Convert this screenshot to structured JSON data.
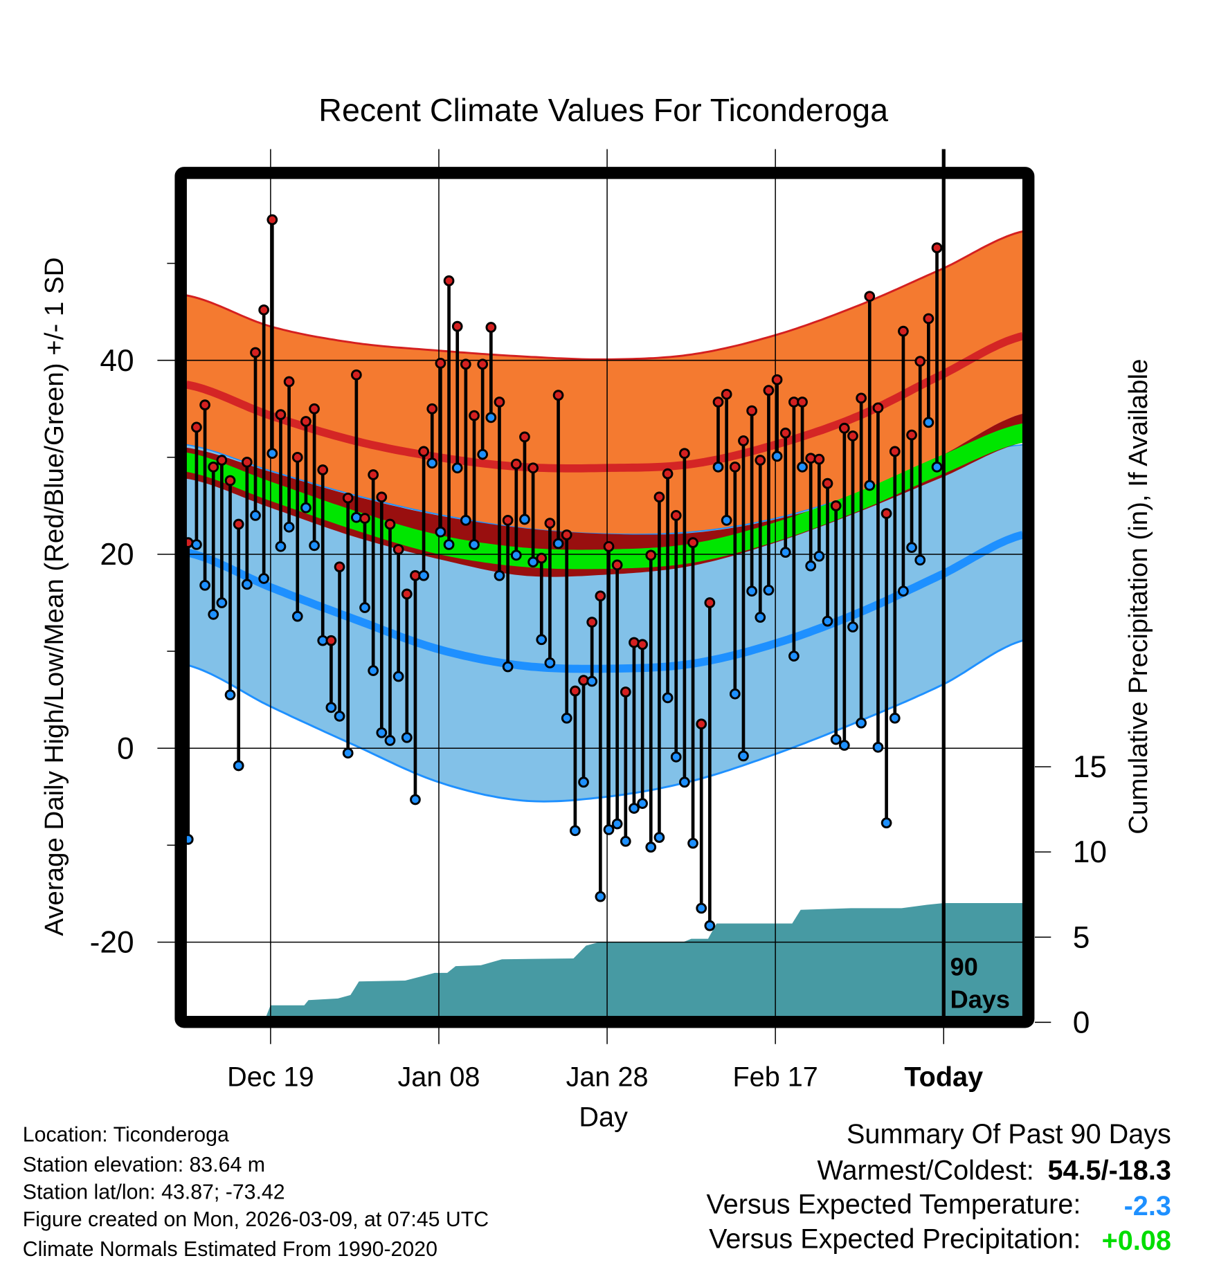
{
  "chart_data": {
    "type": "line",
    "title": "Recent Climate Values For Ticonderoga",
    "xlabel": "Day",
    "ylabel": "Average Daily High/Low/Mean (Red/Blue/Green) +/- 1 SD",
    "y2label": "Cumulative Precipitation (in), If Available",
    "ylim": [
      -27.6,
      58.7
    ],
    "y2lim": [
      0,
      15
    ],
    "xlim_days": [
      0,
      99.4
    ],
    "x_ticks": [
      {
        "day": 10,
        "label": "Dec 19"
      },
      {
        "day": 30,
        "label": "Jan 08"
      },
      {
        "day": 50,
        "label": "Jan 28"
      },
      {
        "day": 70,
        "label": "Feb 17"
      },
      {
        "day": 90,
        "label": "Today"
      }
    ],
    "y_ticks": [
      40,
      20,
      0,
      -20
    ],
    "y_minor_ticks": [
      50,
      30,
      10,
      -10
    ],
    "y2_ticks": [
      15,
      10,
      5,
      0
    ],
    "today_day": 90,
    "window_label_1": "90",
    "window_label_2": "Days",
    "colors": {
      "high": "#d42020",
      "high_band": "#f47a30",
      "high_mean_line": "#d42525",
      "overlap": "#990f0f",
      "mean": "#00e600",
      "low": "#1e90ff",
      "low_band": "#82c1e8",
      "precip": "#479aa3"
    },
    "normals": {
      "days": [
        0,
        10,
        20,
        30,
        40,
        50,
        60,
        70,
        80,
        90,
        99.4
      ],
      "high_plus_sd": [
        46.7,
        43.5,
        41.8,
        41.0,
        40.4,
        40.1,
        40.6,
        42.6,
        45.7,
        49.5,
        53.3
      ],
      "high_mean": [
        37.5,
        34.3,
        31.7,
        30.0,
        29.0,
        28.9,
        29.3,
        31.3,
        34.3,
        38.6,
        42.5
      ],
      "high_minus_sd": [
        31.0,
        28.5,
        26.0,
        24.0,
        22.7,
        22.1,
        22.2,
        23.6,
        26.2,
        30.3,
        34.5
      ],
      "overlap_bottom": [
        27.8,
        24.8,
        21.8,
        19.5,
        17.8,
        17.9,
        18.8,
        21.2,
        24.4,
        28.0,
        31.5
      ],
      "mean": [
        29.5,
        26.5,
        23.5,
        21.0,
        19.7,
        19.5,
        20.1,
        22.3,
        25.5,
        29.3,
        32.5
      ],
      "low_plus_sd": [
        31.3,
        28.6,
        26.1,
        24.1,
        22.7,
        22.1,
        22.3,
        23.7,
        26.3,
        29.6,
        31.3
      ],
      "low_mean": [
        20.2,
        16.6,
        13.3,
        10.2,
        8.5,
        8.2,
        8.7,
        10.8,
        14.0,
        18.0,
        22.0
      ],
      "low_minus_sd": [
        8.6,
        4.3,
        0.3,
        -3.5,
        -5.4,
        -5.0,
        -3.4,
        -0.6,
        2.8,
        6.6,
        11.1
      ]
    },
    "daily_high": [
      21.2,
      33.1,
      35.4,
      29.0,
      29.7,
      27.6,
      23.1,
      29.5,
      40.8,
      45.2,
      54.5,
      34.4,
      37.8,
      30.0,
      33.7,
      35.0,
      28.7,
      11.1,
      18.7,
      25.8,
      38.5,
      23.7,
      28.2,
      25.9,
      23.1,
      20.5,
      15.9,
      17.8,
      30.6,
      35.0,
      39.7,
      48.2,
      43.5,
      39.6,
      34.3,
      39.6,
      43.4,
      35.7,
      23.5,
      29.3,
      32.1,
      28.9,
      19.6,
      23.2,
      36.4,
      22.0,
      5.9,
      7.0,
      13.0,
      15.7,
      20.8,
      18.9,
      5.8,
      10.9,
      10.7,
      19.9,
      25.9,
      28.3,
      24.0,
      30.4,
      21.2,
      2.5,
      15.0,
      35.7,
      36.5,
      29.0,
      31.7,
      34.8,
      29.7,
      36.9,
      38.0,
      32.5,
      35.7,
      35.7,
      29.9,
      29.8,
      27.3,
      25.0,
      33.0,
      32.2,
      36.1,
      46.6,
      35.1,
      24.2,
      30.6,
      43.0,
      32.3,
      39.9,
      44.3,
      51.6
    ],
    "daily_low": [
      -9.4,
      21.0,
      16.8,
      13.8,
      15.0,
      5.5,
      -1.8,
      16.9,
      24.0,
      17.5,
      30.4,
      20.8,
      22.8,
      13.6,
      24.8,
      20.9,
      11.1,
      4.2,
      3.3,
      -0.5,
      23.8,
      14.5,
      8.0,
      1.6,
      0.8,
      7.4,
      1.1,
      -5.3,
      17.8,
      29.4,
      22.3,
      21.0,
      28.9,
      23.5,
      21.0,
      30.3,
      34.1,
      17.8,
      8.4,
      19.9,
      23.6,
      19.2,
      11.2,
      8.8,
      21.1,
      3.1,
      -8.5,
      -3.5,
      6.9,
      -15.3,
      -8.4,
      -7.8,
      -9.6,
      -6.2,
      -5.7,
      -10.2,
      -9.2,
      5.2,
      -0.9,
      -3.5,
      -9.8,
      -16.5,
      -18.3,
      29.0,
      23.5,
      5.6,
      -0.8,
      16.2,
      13.5,
      16.3,
      30.1,
      20.2,
      9.5,
      29.0,
      18.8,
      19.8,
      13.1,
      0.9,
      0.3,
      12.5,
      2.6,
      27.1,
      0.1,
      -7.7,
      3.1,
      16.2,
      20.7,
      19.4,
      33.6,
      29.0
    ],
    "cumulative_precip": [
      [
        0,
        0
      ],
      [
        9.5,
        0
      ],
      [
        10,
        1.0
      ],
      [
        14,
        1.0
      ],
      [
        14.5,
        1.3
      ],
      [
        18,
        1.4
      ],
      [
        19.5,
        1.6
      ],
      [
        20.5,
        2.4
      ],
      [
        26,
        2.45
      ],
      [
        28,
        2.7
      ],
      [
        29.5,
        2.9
      ],
      [
        31,
        2.9
      ],
      [
        32,
        3.3
      ],
      [
        35,
        3.35
      ],
      [
        37.5,
        3.7
      ],
      [
        46,
        3.75
      ],
      [
        47.5,
        4.5
      ],
      [
        49,
        4.7
      ],
      [
        59,
        4.7
      ],
      [
        60,
        4.9
      ],
      [
        62,
        4.9
      ],
      [
        63,
        5.8
      ],
      [
        72,
        5.8
      ],
      [
        73,
        6.6
      ],
      [
        79,
        6.7
      ],
      [
        85,
        6.7
      ],
      [
        88,
        6.9
      ],
      [
        90,
        7.0
      ],
      [
        99.4,
        7.0
      ]
    ]
  },
  "info": {
    "location": "Location: Ticonderoga",
    "elevation": "Station elevation: 83.64 m",
    "latlon": "Station lat/lon: 43.87; -73.42",
    "created": "Figure created on Mon, 2026-03-09, at 07:45 UTC",
    "normals": "Climate Normals Estimated From 1990-2020"
  },
  "summary": {
    "title": "Summary Of Past 90 Days",
    "warm_cold_label": "Warmest/Coldest:",
    "warm_cold_value": "54.5/-18.3",
    "temp_label": "Versus Expected Temperature:",
    "temp_value": "-2.3",
    "temp_color": "#1e90ff",
    "precip_label": "Versus Expected Precipitation:",
    "precip_value": "+0.08",
    "precip_color": "#00dd00"
  }
}
